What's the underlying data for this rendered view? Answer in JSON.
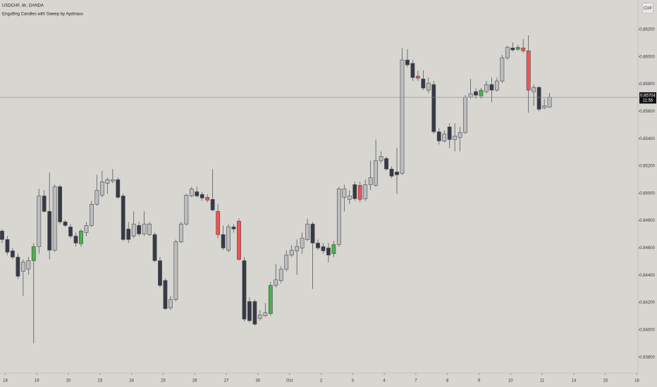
{
  "chart_data": {
    "type": "candlestick",
    "title": "USDCHF, 4h, OANDA",
    "subtitle": "Engulfing Candles with Sweep by Aydmaxx",
    "currency": "CHF",
    "categories": [
      null,
      null,
      null,
      null,
      null,
      null,
      null,
      null,
      null,
      null,
      null,
      null,
      null,
      null,
      null,
      null,
      null,
      null,
      null,
      null,
      null,
      null,
      null,
      null,
      null,
      null,
      null,
      null,
      null,
      null,
      null,
      null,
      null,
      null,
      null,
      null,
      null,
      null,
      null,
      null,
      null,
      null,
      null,
      null,
      null,
      null,
      null,
      null,
      null,
      null,
      null,
      null,
      null,
      null,
      null,
      null,
      null,
      null,
      null,
      null,
      null,
      null,
      null,
      null,
      null,
      null,
      null,
      null,
      null,
      null,
      null,
      null,
      null,
      null,
      null,
      null,
      null,
      null,
      null,
      null,
      null,
      null,
      null,
      null,
      null,
      null,
      null,
      null,
      null,
      null,
      null,
      null,
      null,
      null,
      null,
      null,
      null,
      null,
      null,
      null,
      null,
      null,
      null,
      null,
      null
    ],
    "open": [
      0.84724,
      0.84662,
      0.84579,
      0.84533,
      0.84429,
      0.84445,
      0.84507,
      0.8461,
      0.84981,
      0.84868,
      0.84584,
      0.85049,
      0.84791,
      0.84754,
      0.84687,
      0.84631,
      0.84713,
      0.84765,
      0.8492,
      0.84987,
      0.85074,
      0.8509,
      0.851,
      0.84981,
      0.84739,
      0.84687,
      0.84765,
      0.84703,
      0.84698,
      0.84698,
      0.84507,
      0.84362,
      0.84161,
      0.84223,
      0.84646,
      0.84775,
      0.84981,
      0.85012,
      0.84992,
      0.84971,
      0.84956,
      0.84868,
      0.84698,
      0.84584,
      0.84754,
      0.84796,
      0.84507,
      0.84208,
      0.84208,
      0.84084,
      0.84104,
      0.8412,
      0.84326,
      0.84362,
      0.84445,
      0.84548,
      0.84579,
      0.846,
      0.84662,
      0.84775,
      0.84636,
      0.8461,
      0.846,
      0.84558,
      0.84625,
      0.84971,
      0.84956,
      0.85064,
      0.85059,
      0.84961,
      0.85064,
      0.85059,
      0.8524,
      0.85255,
      0.85178,
      0.85157,
      0.85147,
      0.85977,
      0.85952,
      0.85859,
      0.85838,
      0.85756,
      0.85797,
      0.85451,
      0.85384,
      0.85487,
      0.85394,
      0.8541,
      0.85446,
      0.85704,
      0.85745,
      0.85714,
      0.85745,
      0.85797,
      0.85756,
      0.85823,
      0.85993,
      0.86065,
      0.86055,
      0.86065,
      0.86044,
      0.85745,
      0.85776,
      0.85627,
      0.85632
    ],
    "high": [
      0.84739,
      0.84687,
      0.846,
      0.84558,
      0.84517,
      0.84533,
      0.84636,
      0.85033,
      0.85023,
      0.85152,
      0.85064,
      0.85064,
      0.84806,
      0.84775,
      0.84713,
      0.84739,
      0.84791,
      0.84945,
      0.85136,
      0.85167,
      0.85116,
      0.85178,
      0.85116,
      0.84997,
      0.84791,
      0.84868,
      0.84791,
      0.84868,
      0.84791,
      0.84713,
      0.84533,
      0.84378,
      0.84249,
      0.84662,
      0.84791,
      0.84997,
      0.85049,
      0.85049,
      0.85012,
      0.84992,
      0.85178,
      0.8492,
      0.84765,
      0.84775,
      0.84775,
      0.84816,
      0.84533,
      0.84238,
      0.84223,
      0.84146,
      0.84197,
      0.84352,
      0.84481,
      0.84466,
      0.84584,
      0.8462,
      0.84662,
      0.84713,
      0.84816,
      0.84791,
      0.84662,
      0.84636,
      0.84636,
      0.84651,
      0.85049,
      0.85064,
      0.85023,
      0.85085,
      0.85085,
      0.851,
      0.8524,
      0.85394,
      0.85307,
      0.8527,
      0.85198,
      0.85332,
      0.86065,
      0.86055,
      0.85977,
      0.859,
      0.859,
      0.85848,
      0.85823,
      0.85477,
      0.85461,
      0.85513,
      0.85513,
      0.85487,
      0.85719,
      0.85838,
      0.85771,
      0.85771,
      0.85823,
      0.85848,
      0.85848,
      0.86014,
      0.86081,
      0.86106,
      0.86086,
      0.86132,
      0.86158,
      0.85797,
      0.85786,
      0.85694,
      0.85735
    ],
    "low": [
      0.84636,
      0.84548,
      0.84517,
      0.84373,
      0.84249,
      0.84404,
      0.83903,
      0.84558,
      0.84858,
      0.84517,
      0.84569,
      0.84775,
      0.84754,
      0.84672,
      0.8461,
      0.8461,
      0.84687,
      0.84754,
      0.84909,
      0.84971,
      0.84997,
      0.85074,
      0.84961,
      0.84651,
      0.84636,
      0.84672,
      0.84687,
      0.84687,
      0.84687,
      0.84496,
      0.84311,
      0.84146,
      0.84146,
      0.84208,
      0.84636,
      0.84765,
      0.84971,
      0.84971,
      0.84945,
      0.84935,
      0.84868,
      0.84672,
      0.84584,
      0.84569,
      0.84713,
      0.84507,
      0.84063,
      0.84053,
      0.84032,
      0.84068,
      0.84094,
      0.84104,
      0.84311,
      0.84342,
      0.84429,
      0.84533,
      0.84404,
      0.84558,
      0.84651,
      0.843,
      0.84584,
      0.84558,
      0.84496,
      0.84533,
      0.8461,
      0.84868,
      0.8492,
      0.84945,
      0.84935,
      0.84945,
      0.85023,
      0.85049,
      0.85219,
      0.85167,
      0.85111,
      0.84997,
      0.85136,
      0.85926,
      0.85823,
      0.85823,
      0.85756,
      0.85735,
      0.85436,
      0.85358,
      0.85374,
      0.85332,
      0.85307,
      0.85307,
      0.85436,
      0.85694,
      0.85694,
      0.85694,
      0.8573,
      0.85668,
      0.85745,
      0.85807,
      0.85977,
      0.86039,
      0.86044,
      0.86029,
      0.8559,
      0.85642,
      0.85601,
      0.85616,
      0.85627
    ],
    "close": [
      0.84662,
      0.84569,
      0.84533,
      0.84393,
      0.84496,
      0.84507,
      0.8461,
      0.84981,
      0.84868,
      0.84584,
      0.85049,
      0.84791,
      0.84765,
      0.84687,
      0.84636,
      0.84724,
      0.84765,
      0.8492,
      0.85023,
      0.85085,
      0.851,
      0.851,
      0.84971,
      0.84662,
      0.84662,
      0.84775,
      0.84703,
      0.84775,
      0.84775,
      0.84507,
      0.84326,
      0.84156,
      0.84223,
      0.84646,
      0.84775,
      0.84987,
      0.85033,
      0.84981,
      0.84966,
      0.84951,
      0.84878,
      0.84698,
      0.846,
      0.84754,
      0.84739,
      0.84517,
      0.84079,
      0.84068,
      0.84042,
      0.84109,
      0.84125,
      0.84326,
      0.84367,
      0.84445,
      0.84548,
      0.84584,
      0.8461,
      0.84672,
      0.84775,
      0.84636,
      0.846,
      0.84579,
      0.84548,
      0.84625,
      0.85033,
      0.85033,
      0.84981,
      0.84961,
      0.84956,
      0.85064,
      0.85116,
      0.8524,
      0.8527,
      0.85178,
      0.85126,
      0.85136,
      0.85977,
      0.85941,
      0.85848,
      0.85843,
      0.85771,
      0.85807,
      0.85451,
      0.85384,
      0.85436,
      0.85394,
      0.8542,
      0.85446,
      0.85704,
      0.8573,
      0.85719,
      0.85756,
      0.85797,
      0.85756,
      0.85823,
      0.85993,
      0.8607,
      0.8605,
      0.8607,
      0.86044,
      0.85756,
      0.85776,
      0.85616,
      0.85642,
      0.85704
    ],
    "colors": [
      "#363a45",
      "#363a45",
      "#363a45",
      "#363a45",
      "#bdbdbd",
      "#bdbdbd",
      "#4caf50",
      "#bdbdbd",
      "#363a45",
      "#363a45",
      "#bdbdbd",
      "#363a45",
      "#363a45",
      "#363a45",
      "#363a45",
      "#4caf50",
      "#bdbdbd",
      "#bdbdbd",
      "#bdbdbd",
      "#bdbdbd",
      "#bdbdbd",
      "#bdbdbd",
      "#363a45",
      "#363a45",
      "#363a45",
      "#bdbdbd",
      "#363a45",
      "#bdbdbd",
      "#bdbdbd",
      "#363a45",
      "#363a45",
      "#363a45",
      "#bdbdbd",
      "#bdbdbd",
      "#bdbdbd",
      "#bdbdbd",
      "#bdbdbd",
      "#363a45",
      "#363a45",
      "#f25252",
      "#363a45",
      "#f25252",
      "#363a45",
      "#bdbdbd",
      "#363a45",
      "#f25252",
      "#363a45",
      "#363a45",
      "#363a45",
      "#bdbdbd",
      "#bdbdbd",
      "#4caf50",
      "#bdbdbd",
      "#bdbdbd",
      "#bdbdbd",
      "#bdbdbd",
      "#bdbdbd",
      "#bdbdbd",
      "#bdbdbd",
      "#363a45",
      "#363a45",
      "#363a45",
      "#363a45",
      "#4caf50",
      "#bdbdbd",
      "#bdbdbd",
      "#bdbdbd",
      "#363a45",
      "#f25252",
      "#bdbdbd",
      "#bdbdbd",
      "#bdbdbd",
      "#bdbdbd",
      "#363a45",
      "#363a45",
      "#363a45",
      "#bdbdbd",
      "#363a45",
      "#363a45",
      "#f25252",
      "#363a45",
      "#bdbdbd",
      "#363a45",
      "#363a45",
      "#bdbdbd",
      "#363a45",
      "#bdbdbd",
      "#bdbdbd",
      "#bdbdbd",
      "#bdbdbd",
      "#363a45",
      "#4caf50",
      "#bdbdbd",
      "#363a45",
      "#bdbdbd",
      "#bdbdbd",
      "#bdbdbd",
      "#363a45",
      "#4caf50",
      "#f25252",
      "#f25252",
      "#bdbdbd",
      "#363a45",
      "#bdbdbd",
      "#bdbdbd"
    ],
    "last_price": {
      "value": 0.85704,
      "label": "0.85704"
    },
    "countdown": "11:55",
    "xlim": [
      -0.4,
      120.8
    ],
    "xticks": [
      {
        "value": 0.6,
        "label": "18"
      },
      {
        "value": 6.6,
        "label": "19"
      },
      {
        "value": 12.6,
        "label": "20"
      },
      {
        "value": 18.6,
        "label": "23"
      },
      {
        "value": 24.6,
        "label": "24"
      },
      {
        "value": 30.6,
        "label": "25"
      },
      {
        "value": 36.6,
        "label": "26"
      },
      {
        "value": 42.6,
        "label": "27"
      },
      {
        "value": 48.6,
        "label": "30"
      },
      {
        "value": 54.6,
        "label": "Oct"
      },
      {
        "value": 60.6,
        "label": "2"
      },
      {
        "value": 66.6,
        "label": "3"
      },
      {
        "value": 72.6,
        "label": "4"
      },
      {
        "value": 78.6,
        "label": "7"
      },
      {
        "value": 84.6,
        "label": "8"
      },
      {
        "value": 90.6,
        "label": "9"
      },
      {
        "value": 96.6,
        "label": "10"
      },
      {
        "value": 102.6,
        "label": "11"
      },
      {
        "value": 108.6,
        "label": "14"
      },
      {
        "value": 114.6,
        "label": "15"
      },
      {
        "value": 120.6,
        "label": "16"
      }
    ],
    "ylim": [
      0.83685,
      0.86416
    ],
    "yticks": [
      {
        "value": 0.838,
        "label": "0.83800"
      },
      {
        "value": 0.84,
        "label": "0.84000"
      },
      {
        "value": 0.842,
        "label": "0.84200"
      },
      {
        "value": 0.844,
        "label": "0.84400"
      },
      {
        "value": 0.846,
        "label": "0.84600"
      },
      {
        "value": 0.848,
        "label": "0.84800"
      },
      {
        "value": 0.85,
        "label": "0.85000"
      },
      {
        "value": 0.852,
        "label": "0.85200"
      },
      {
        "value": 0.854,
        "label": "0.85400"
      },
      {
        "value": 0.856,
        "label": "0.85600"
      },
      {
        "value": 0.858,
        "label": "0.85800"
      },
      {
        "value": 0.86,
        "label": "0.86000"
      },
      {
        "value": 0.862,
        "label": "0.86200"
      }
    ],
    "grid": false
  }
}
